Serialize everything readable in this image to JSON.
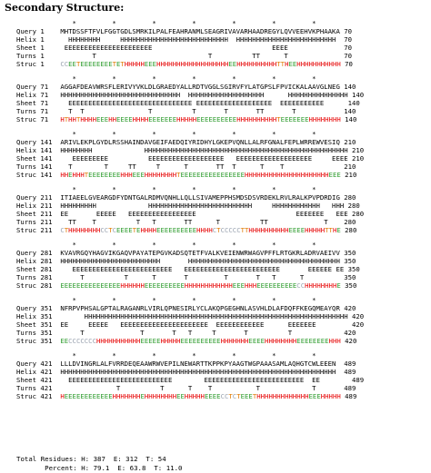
{
  "title": "Secondary Structure:",
  "marker_row": "*         *         *         *         *         *         *",
  "blocks": [
    {
      "start": 1,
      "end": 70,
      "query": "MHTDSSFTFVLFGGTGDLSMRKILPALFEAHRANMLSEAGRIVAVARHAADREGYLQVVEEHVKPHAAKA",
      "helix": "  HHHHHHHH     HHHHHHHHHHHHHHHHHHHHHHHHHHH  HHHHHHHHHHHHHHHHHHHHHHHHH",
      "sheet": " EEEEEEEEEEEEEEEEEEEEEE                              EEEE            ",
      "turns": "        T                            T          TT      T         ",
      "struc": "CCEETEEEEEEEETETHHHHHEEEHHHHHHHHHHHHHHHHHHEEHHHHHHHHHHTTHEEHHHHHHHHHHHH"
    },
    {
      "start": 71,
      "end": 140,
      "query": "AGGAFDEAVWRSFLERIVYVKLDLGRAEDYALLRDTVGGLSGIRVFYLATGPSLFPVICKALAAVGLNEG",
      "helix": "HHHHHHHHHHHHHHHHHHHHHHHHHHHHHH  HHHHHHHHHHHHHHHHHHH      HHHHHHHHHHHHHHH",
      "sheet": "  EEEEEEEEEEEEEEEEEEEEEEEEEEEEEEE EEEEEEEEEEEEEEEEEEE  EEEEEEEEEEE     ",
      "turns": "  T  T                T          T       T       TT       T          ",
      "struc": "HTHHTHHHHEEEHHEEEEHHHHEEEEEEEHHHHHEEEEEEEEEEHHHHHHHHHHTEEEEEEEHHHHHHHHEH"
    },
    {
      "start": 141,
      "end": 210,
      "query": "ARIVLEKPLGYDLRSSHAINDAVGEIFAEDQIYRIDHYLGKEPVQNLLALRFGNALFEPLWRREWVESIQ",
      "helix": "HHHHHHHH             HHHHHHHHHHHHHHHHHHHHHHHHHHHHHHHHHHHHHHHHHHHHHHHHHHH",
      "sheet": "   EEEEEEEEE          EEEEEEEEEEEEEEEEEEE   EEEEEEEEEEEEEEEEEEE     EEEE",
      "turns": "  T        T     TT     T      T       TT  T      T    T           ",
      "struc": "HHEHHHTEEEEEEEEHHHEEEHHHHHHHHTEEEEEEEEEEEEEEEEHHHHHHHHHHHHHHHHHHHHHEEEEEHHE"
    },
    {
      "start": 211,
      "end": 280,
      "query": "ITIAEELGVEARGDFYDNTGALRDMVQNHLLQLLSIVAMEPPHSMDSDSVRDEKLRVLRALKPVPDRDIG",
      "helix": "HHHHHHHHH             HHHHHHHHHHHHHHHHHHHHHHHHHH     HHHHHHHHHHHH   HHH",
      "sheet": "EE       EEEEE   EEEEEEEEEEEEEEEEE                         EEEEEEE   EEE",
      "turns": "  TT    T          T   T       TT      T          TT              T  ",
      "struc": "CTHHHHHHHHCCTCEEEETEHHHHEEEEEEEEEEHHHHCTCCCCCTTHHHHHHHHHHEEEEHHHHHTTHEHH"
    },
    {
      "start": 281,
      "end": 350,
      "query": "KVAVRGQYHAGVIKGAQVPAYATEPGVKADSQTETFVALKVEIENWRWAGVPFFLRTGKRLADRVAEIVV",
      "helix": "HHHHHHHHHHHHHHHHHHHHHHHHH       HHHHHHHHHHHHHHHHHHHHHHHHHHHHHHHHHHHHHH",
      "sheet": "   EEEEEEEEEEEEEEEEEEEEEEEEE   EEEEEEEEEEEEEEEEEEEEEEEE       EEEEEE EE",
      "turns": "     T          T      T       T         T       T   T      T        ",
      "struc": "EEEEEEEEEEEEEEEHHHHHHEEEEEEEEEEHHHHHHHHHHHHEEEHHHEEEEEEEEEECCHHHHHHHHEEEH"
    },
    {
      "start": 351,
      "end": 420,
      "query": "NFRPVPHSALGPTALRAGANRLVIRLQPNESIRLYCLAKQPGEGHNLASVHLDLAFDQFFKEGQMEAYQR",
      "helix": "      HHHHHHHHHHHHHHHHHHHHHHHHHHHHHHHHHHHHHHHHHHHHHHHHHHHHHHHHHHHHHHHHHH",
      "sheet": "EE     EEEEE   EEEEEEEEEEEEEEEEEEEEEE  EEEEEEEEEEEE      EEEEEEE        ",
      "turns": "     T              T       T   T     T       T          T           ",
      "struc": "EECCCCCCCHHHHHHHHHHHEEEEEHHHHHEEEEEEEEEEHHHHHHHEEEEHHHHHHHHEEEEEEEEHHHEEE"
    },
    {
      "start": 421,
      "end": 489,
      "query": "LLLDVINGRLALFVRRDEQEAAWRWVEPILNEWARTTKPPKPYAAGTWGPAAASAMLAQHGTCWLEEEN",
      "helix": "HHHHHHHHHHHHHHHHHHHHHHHHHHHHHHHHHHHHHHHHHHHHHHHHHHHHHHHHHHHHHHHHHHHHH",
      "sheet": "  EEEEEEEEEEEEEEEEEEEEEEEEEE        EEEEEEEEEEEEEEEEEEEEEEEEE  EE       ",
      "turns": "              T          T      T    T           T             T    ",
      "struc": "HEEEEEEEEEEEEHHHHHHHEHHHHHHHHEEHHHHHEEEECCTCTEEETHHHHHHHHHHHHHEEEHHHHHHTCC"
    }
  ],
  "totals": {
    "label": "Total Residues:",
    "H": 387,
    "E": 312,
    "T": 54,
    "percent_label": "Percent:",
    "pH": "79.1",
    "pE": "63.8",
    "pT": "11.0"
  }
}
